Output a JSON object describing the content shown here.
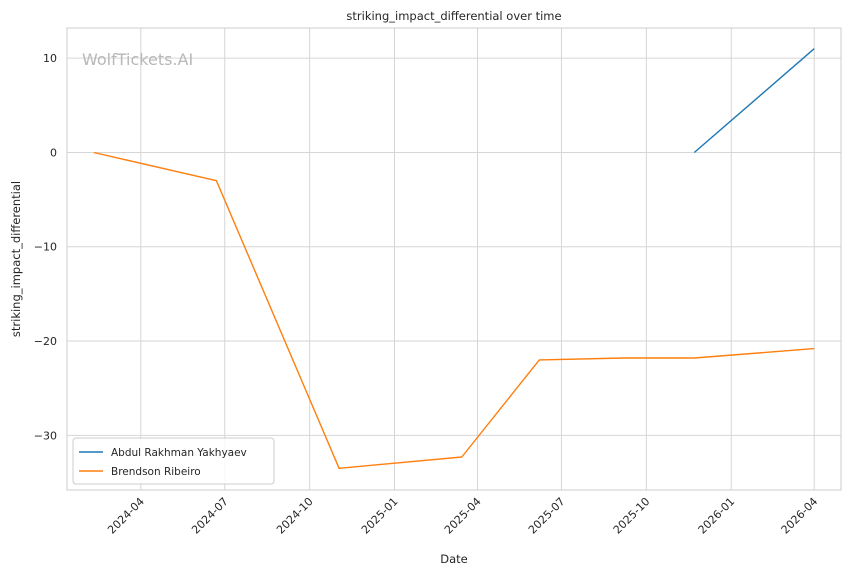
{
  "chart_data": {
    "type": "line",
    "title": "striking_impact_differential over time",
    "xlabel": "Date",
    "ylabel": "striking_impact_differential",
    "watermark": "WolfTickets.AI",
    "x_type": "date",
    "xlim": [
      "2024-01-12",
      "2026-04-30"
    ],
    "ylim": [
      -35.8,
      13.2
    ],
    "x_ticks": [
      "2024-04-01",
      "2024-07-01",
      "2024-10-01",
      "2025-01-01",
      "2025-04-01",
      "2025-07-01",
      "2025-10-01",
      "2026-01-01",
      "2026-04-01"
    ],
    "x_tick_labels": [
      "2024-04",
      "2024-07",
      "2024-10",
      "2025-01",
      "2025-04",
      "2025-07",
      "2025-10",
      "2026-01",
      "2026-04"
    ],
    "y_ticks": [
      10,
      0,
      -10,
      -20,
      -30
    ],
    "y_tick_labels": [
      "10",
      "0",
      "−10",
      "−20",
      "−30"
    ],
    "grid": true,
    "legend_position": "lower-left",
    "series": [
      {
        "name": "Abdul Rakhman Yakhyaev",
        "color": "#1f77b4",
        "points": [
          {
            "x": "2025-11-22",
            "y": 0
          },
          {
            "x": "2026-04-01",
            "y": 11
          }
        ]
      },
      {
        "name": "Brendson Ribeiro",
        "color": "#ff7f0e",
        "points": [
          {
            "x": "2024-02-10",
            "y": 0
          },
          {
            "x": "2024-06-22",
            "y": -3
          },
          {
            "x": "2024-11-02",
            "y": -33.5
          },
          {
            "x": "2025-03-15",
            "y": -32.3
          },
          {
            "x": "2025-06-07",
            "y": -22
          },
          {
            "x": "2025-09-06",
            "y": -21.8
          },
          {
            "x": "2025-11-22",
            "y": -21.8
          },
          {
            "x": "2026-04-01",
            "y": -20.8
          }
        ]
      }
    ]
  }
}
